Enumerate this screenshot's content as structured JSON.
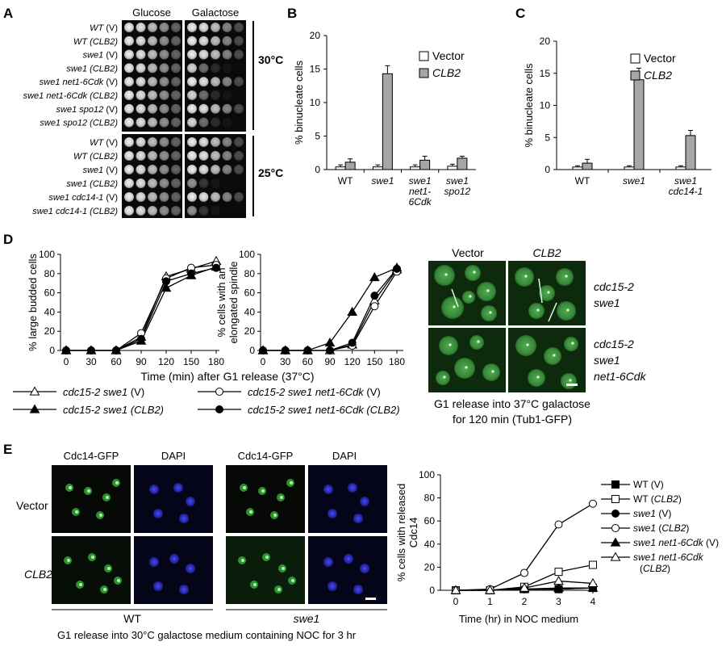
{
  "panels": {
    "A": {
      "letter": "A",
      "col_headers": [
        "Glucose",
        "Galactose"
      ],
      "temp1": "30°C",
      "temp2": "25°C",
      "rows1": [
        {
          "strain": "WT",
          "plasmid": " (V)"
        },
        {
          "strain": "WT",
          "plasmid": " (CLB2)"
        },
        {
          "strain": "swe1",
          "plasmid": " (V)"
        },
        {
          "strain": "swe1",
          "plasmid": " (CLB2)"
        },
        {
          "strain": "swe1 net1-6Cdk",
          "plasmid": " (V)"
        },
        {
          "strain": "swe1 net1-6Cdk",
          "plasmid": " (CLB2)"
        },
        {
          "strain": "swe1 spo12",
          "plasmid": " (V)"
        },
        {
          "strain": "swe1 spo12",
          "plasmid": " (CLB2)"
        }
      ],
      "rows2": [
        {
          "strain": "WT",
          "plasmid": " (V)"
        },
        {
          "strain": "WT",
          "plasmid": " (CLB2)"
        },
        {
          "strain": "swe1",
          "plasmid": " (V)"
        },
        {
          "strain": "swe1",
          "plasmid": " (CLB2)"
        },
        {
          "strain": "swe1 cdc14-1",
          "plasmid": " (V)"
        },
        {
          "strain": "swe1 cdc14-1",
          "plasmid": " (CLB2)"
        }
      ]
    },
    "B": {
      "letter": "B"
    },
    "C": {
      "letter": "C"
    },
    "D": {
      "letter": "D",
      "xlabel": "Time (min) after G1 release (37°C)",
      "legend": [
        {
          "label": "cdc15-2 swe1 (V)"
        },
        {
          "label": "cdc15-2 swe1 (CLB2)"
        },
        {
          "label": "cdc15-2 swe1 net1-6Cdk (V)"
        },
        {
          "label": "cdc15-2 swe1 net1-6Cdk (CLB2)"
        }
      ],
      "micro_col_headers": [
        "Vector",
        "CLB2"
      ],
      "micro_row1_label": [
        "cdc15-2",
        "swe1"
      ],
      "micro_row2_label": [
        "cdc15-2",
        "swe1",
        "net1-6Cdk"
      ],
      "micro_caption": [
        "G1 release into 37°C galactose",
        "for 120 min (Tub1-GFP)"
      ]
    },
    "E": {
      "letter": "E",
      "col_headers": [
        "Cdc14-GFP",
        "DAPI",
        "Cdc14-GFP",
        "DAPI"
      ],
      "row_labels": [
        "Vector",
        "CLB2"
      ],
      "group_labels": [
        "WT",
        "swe1"
      ],
      "caption": "G1 release into 30°C galactose medium containing NOC for 3 hr"
    }
  },
  "chart_data": [
    {
      "id": "B",
      "type": "bar",
      "categories": [
        "WT",
        "swe1",
        "swe1 net1-6Cdk",
        "swe1 spo12"
      ],
      "ylabel": "% binucleate cells",
      "ylim": [
        0,
        20
      ],
      "yticks": [
        0,
        5,
        10,
        15,
        20
      ],
      "series": [
        {
          "name": "Vector",
          "values": [
            0.4,
            0.4,
            0.4,
            0.5
          ],
          "errors": [
            0.3,
            0.3,
            0.3,
            0.3
          ],
          "color": "#ffffff"
        },
        {
          "name": "CLB2",
          "values": [
            1.1,
            14.3,
            1.4,
            1.7
          ],
          "errors": [
            0.5,
            1.2,
            0.6,
            0.3
          ],
          "color": "#a6a6a6"
        }
      ],
      "legend_position": "top-right"
    },
    {
      "id": "C",
      "type": "bar",
      "categories": [
        "WT",
        "swe1",
        "swe1 cdc14-1"
      ],
      "ylabel": "% binucleate cells",
      "ylim": [
        0,
        20
      ],
      "yticks": [
        0,
        5,
        10,
        15,
        20
      ],
      "series": [
        {
          "name": "Vector",
          "values": [
            0.4,
            0.4,
            0.4
          ],
          "errors": [
            0.2,
            0.2,
            0.2
          ],
          "color": "#ffffff"
        },
        {
          "name": "CLB2",
          "values": [
            1.0,
            14.0,
            5.3
          ],
          "errors": [
            0.6,
            1.8,
            0.8
          ],
          "color": "#a6a6a6"
        }
      ],
      "legend_position": "top-right"
    },
    {
      "id": "D1",
      "type": "line",
      "x": [
        0,
        30,
        60,
        90,
        120,
        150,
        180
      ],
      "ylabel": "% large budded cells",
      "ylim": [
        0,
        100
      ],
      "yticks": [
        0,
        20,
        40,
        60,
        80,
        100
      ],
      "series": [
        {
          "name": "cdc15-2 swe1 (V)",
          "marker": "triangle-open",
          "values": [
            0,
            0,
            0,
            14,
            77,
            85,
            93
          ]
        },
        {
          "name": "cdc15-2 swe1 (CLB2)",
          "marker": "triangle-filled",
          "values": [
            0,
            0,
            0,
            10,
            65,
            78,
            87
          ]
        },
        {
          "name": "cdc15-2 swe1 net1-6Cdk (V)",
          "marker": "circle-open",
          "values": [
            0,
            0,
            0,
            18,
            75,
            86,
            89
          ]
        },
        {
          "name": "cdc15-2 swe1 net1-6Cdk (CLB2)",
          "marker": "circle-filled",
          "values": [
            0,
            0,
            0,
            12,
            72,
            80,
            86
          ]
        }
      ]
    },
    {
      "id": "D2",
      "type": "line",
      "x": [
        0,
        30,
        60,
        90,
        120,
        150,
        180
      ],
      "ylabel": "% cells with an elongated spindle",
      "ylim": [
        0,
        100
      ],
      "yticks": [
        0,
        20,
        40,
        60,
        80,
        100
      ],
      "series": [
        {
          "name": "cdc15-2 swe1 (V)",
          "marker": "triangle-open",
          "values": [
            0,
            0,
            0,
            0,
            6,
            52,
            84
          ]
        },
        {
          "name": "cdc15-2 swe1 (CLB2)",
          "marker": "triangle-filled",
          "values": [
            0,
            0,
            0,
            8,
            40,
            76,
            86
          ]
        },
        {
          "name": "cdc15-2 swe1 net1-6Cdk (V)",
          "marker": "circle-open",
          "values": [
            0,
            0,
            0,
            0,
            5,
            46,
            82
          ]
        },
        {
          "name": "cdc15-2 swe1 net1-6Cdk (CLB2)",
          "marker": "circle-filled",
          "values": [
            0,
            0,
            0,
            0,
            8,
            57,
            85
          ]
        }
      ]
    },
    {
      "id": "E",
      "type": "line",
      "x": [
        0,
        1,
        2,
        3,
        4
      ],
      "xlabel": "Time (hr) in NOC medium",
      "ylabel": "% cells with released Cdc14",
      "ylim": [
        0,
        100
      ],
      "yticks": [
        0,
        20,
        40,
        60,
        80,
        100
      ],
      "series": [
        {
          "name": "WT (V)",
          "marker": "square-filled",
          "values": [
            0,
            0,
            1,
            1,
            2
          ]
        },
        {
          "name": "WT (CLB2)",
          "marker": "square-open",
          "values": [
            0,
            0,
            3,
            16,
            22
          ]
        },
        {
          "name": "swe1 (V)",
          "marker": "circle-filled",
          "values": [
            0,
            0,
            1,
            1,
            2
          ]
        },
        {
          "name": "swe1 (CLB2)",
          "marker": "circle-open",
          "values": [
            0,
            1,
            15,
            57,
            75
          ]
        },
        {
          "name": "swe1 net1-6Cdk (V)",
          "marker": "triangle-filled",
          "values": [
            0,
            0,
            1,
            2,
            2
          ]
        },
        {
          "name": "swe1 net1-6Cdk (CLB2)",
          "marker": "triangle-open",
          "values": [
            0,
            0,
            2,
            8,
            6
          ]
        }
      ]
    }
  ]
}
